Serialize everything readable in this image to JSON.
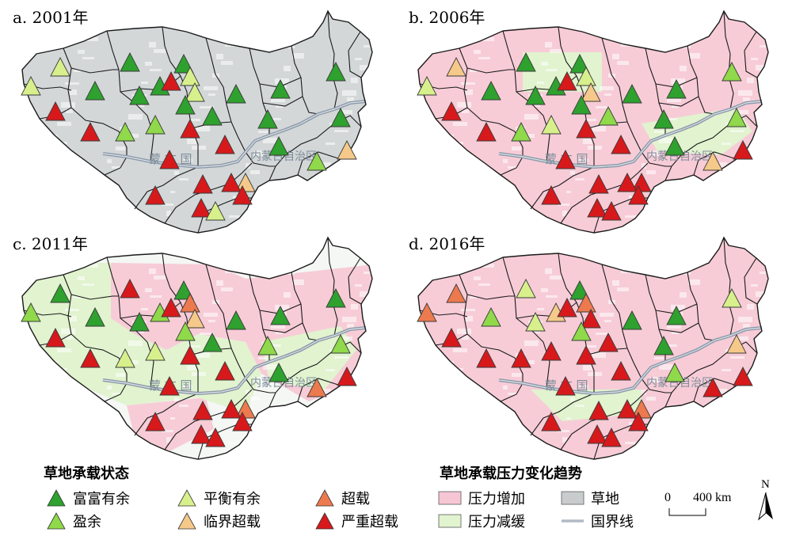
{
  "panels": [
    {
      "title": "a. 2001年",
      "year": 2001,
      "background": "grassland"
    },
    {
      "title": "b. 2006年",
      "year": 2006,
      "background": "trend"
    },
    {
      "title": "c. 2011年",
      "year": 2011,
      "background": "trend"
    },
    {
      "title": "d. 2016年",
      "year": 2016,
      "background": "trend"
    }
  ],
  "map_labels": {
    "mongolia": "蒙 古 国",
    "inner_mongolia": "内蒙古自治区"
  },
  "legend_status": {
    "title": "草地承载状态",
    "items": [
      {
        "label": "富富有余",
        "color": "#2ea12e"
      },
      {
        "label": "盈余",
        "color": "#8fd94a"
      },
      {
        "label": "平衡有余",
        "color": "#d7f08c"
      },
      {
        "label": "临界超载",
        "color": "#f5c98a"
      },
      {
        "label": "超载",
        "color": "#ec7a4e"
      },
      {
        "label": "严重超载",
        "color": "#d7191c"
      }
    ]
  },
  "legend_trend": {
    "title": "草地承载压力变化趋势",
    "items": [
      {
        "label": "压力增加",
        "color": "#f7c6d4"
      },
      {
        "label": "草地",
        "color": "#c8cccc"
      },
      {
        "label": "压力减缓",
        "color": "#e1f3cf"
      },
      {
        "label": "国界线",
        "color": "#8a98a8"
      }
    ]
  },
  "scale_bar": {
    "zero": "0",
    "max": "400 km"
  },
  "north_arrow": {
    "label": "N"
  }
}
